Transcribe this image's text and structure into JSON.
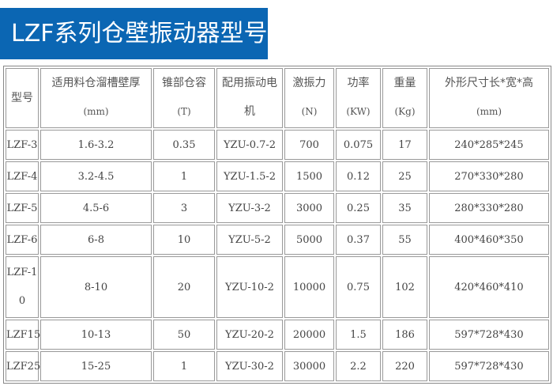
{
  "title": "LZF系列仓壁振动器型号",
  "colors": {
    "banner": "#0b66b3",
    "border": "#999999"
  },
  "table": {
    "headers": [
      {
        "label": "型号",
        "unit": ""
      },
      {
        "label": "适用料仓溜槽壁厚",
        "unit": "(mm)"
      },
      {
        "label": "锥部仓容",
        "unit": "(T)"
      },
      {
        "label": "配用振动电",
        "unit": "机"
      },
      {
        "label": "激振力",
        "unit": "(N)"
      },
      {
        "label": "功率",
        "unit": "(KW)"
      },
      {
        "label": "重量",
        "unit": "(Kg)"
      },
      {
        "label": "外形尺寸长*宽*高",
        "unit": "(mm)"
      }
    ],
    "rows": [
      [
        "LZF-3",
        "1.6-3.2",
        "0.35",
        "YZU-0.7-2",
        "700",
        "0.075",
        "17",
        "240*285*245"
      ],
      [
        "LZF-4",
        "3.2-4.5",
        "1",
        "YZU-1.5-2",
        "1500",
        "0.12",
        "25",
        "270*330*280"
      ],
      [
        "LZF-5",
        "4.5-6",
        "3",
        "YZU-3-2",
        "3000",
        "0.25",
        "35",
        "280*330*280"
      ],
      [
        "LZF-6",
        "6-8",
        "10",
        "YZU-5-2",
        "5000",
        "0.37",
        "55",
        "400*460*350"
      ],
      [
        "LZF-10",
        "8-10",
        "20",
        "YZU-10-2",
        "10000",
        "0.75",
        "102",
        "420*460*410"
      ],
      [
        "LZF15",
        "10-13",
        "50",
        "YZU-20-2",
        "20000",
        "1.5",
        "186",
        "597*728*430"
      ],
      [
        "LZF25",
        "15-25",
        "1",
        "YZU-30-2",
        "30000",
        "2.2",
        "220",
        "597*728*430"
      ]
    ]
  }
}
